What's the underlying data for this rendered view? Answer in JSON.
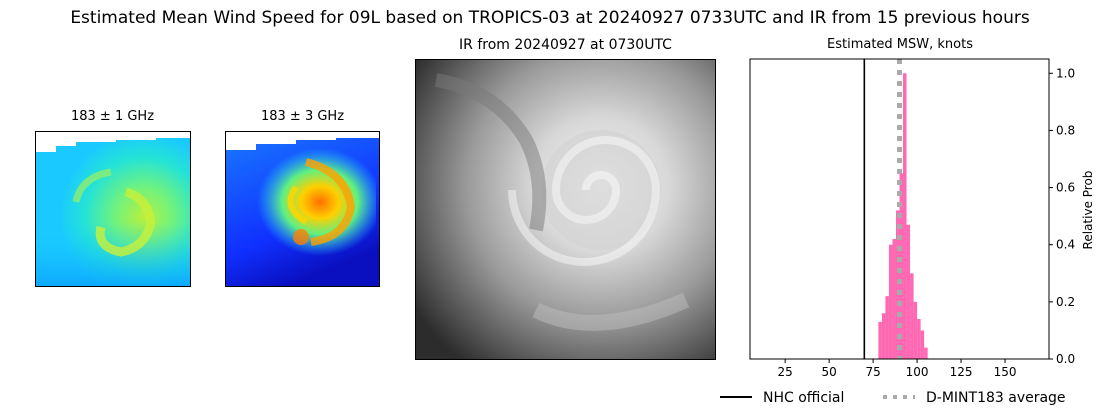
{
  "figure": {
    "suptitle": "Estimated Mean Wind Speed for 09L based on TROPICS-03 at 20240927 0733UTC and IR from 15 previous hours"
  },
  "panels": {
    "mw1": {
      "title": "183 ± 1 GHz"
    },
    "mw3": {
      "title": "183 ± 3 GHz"
    },
    "ir": {
      "title": "IR from 20240927 at 0730UTC"
    }
  },
  "chart_data": {
    "type": "bar",
    "title": "Estimated MSW, knots",
    "xlabel": "",
    "ylabel": "Relative Prob",
    "xlim": [
      5,
      175
    ],
    "ylim": [
      0,
      1.05
    ],
    "xticks": [
      25,
      50,
      75,
      100,
      125,
      150
    ],
    "yticks": [
      0.0,
      0.2,
      0.4,
      0.6,
      0.8,
      1.0
    ],
    "ytick_labels": [
      "0.0",
      "0.2",
      "0.4",
      "0.6",
      "0.8",
      "1.0"
    ],
    "y_axis_side": "right",
    "grid": false,
    "bin_width": 2,
    "bins": [
      {
        "x": 79,
        "value": 0.13
      },
      {
        "x": 81,
        "value": 0.16
      },
      {
        "x": 83,
        "value": 0.22
      },
      {
        "x": 85,
        "value": 0.4
      },
      {
        "x": 87,
        "value": 0.42
      },
      {
        "x": 89,
        "value": 0.52
      },
      {
        "x": 91,
        "value": 0.65
      },
      {
        "x": 93,
        "value": 1.0
      },
      {
        "x": 95,
        "value": 0.47
      },
      {
        "x": 97,
        "value": 0.3
      },
      {
        "x": 99,
        "value": 0.2
      },
      {
        "x": 101,
        "value": 0.14
      },
      {
        "x": 103,
        "value": 0.1
      },
      {
        "x": 105,
        "value": 0.04
      }
    ],
    "bar_color": "#ff69b4",
    "lines": [
      {
        "name": "NHC official",
        "x": 70,
        "color": "#000000",
        "style": "solid"
      },
      {
        "name": "D-MINT183 average",
        "x": 90,
        "color": "#aaaaaa",
        "style": "dotted"
      }
    ],
    "legend_placement": "bottom-right"
  }
}
